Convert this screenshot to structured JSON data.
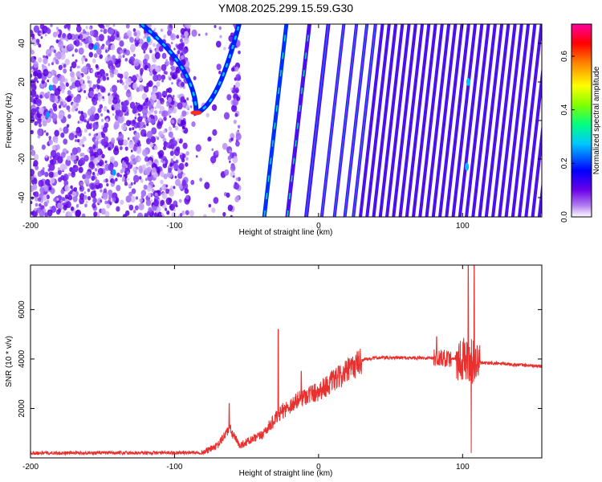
{
  "title": "YM08.2025.299.15.59.G30",
  "chart_data": [
    {
      "type": "heatmap",
      "xlabel": "Height of straight line (km)",
      "ylabel": "Frequency (Hz)",
      "xlim": [
        -200,
        155
      ],
      "ylim": [
        -50,
        50
      ],
      "x_ticks": [
        -200,
        -100,
        0,
        100
      ],
      "y_ticks": [
        -40,
        -20,
        0,
        20,
        40
      ],
      "colorbar": {
        "label": "Normalized spectral amplitude",
        "range": [
          0,
          0.72
        ],
        "ticks": [
          0,
          0.2,
          0.4,
          0.6
        ],
        "tick_labels": [
          "0.0",
          "0.2",
          "0.4",
          "0.6"
        ],
        "colors": [
          "#ffffff",
          "#8a2be2",
          "#0000ff",
          "#00ffff",
          "#00ff00",
          "#ffff00",
          "#ff0000",
          "#ff0090"
        ]
      },
      "features": {
        "noise_region_x": [
          -200,
          -85
        ],
        "arc_vertex": [
          -85,
          4
        ],
        "stripe_start_x": -30,
        "stripe_slope_hz_per_km": 6.5
      }
    },
    {
      "type": "line",
      "xlabel": "Height of straight line (km)",
      "ylabel": "SNR (10 * v/v)",
      "xlim": [
        -200,
        155
      ],
      "ylim": [
        0,
        7800
      ],
      "x_ticks": [
        -200,
        -100,
        0,
        100
      ],
      "y_ticks": [
        2000,
        4000,
        6000
      ],
      "color": "#e8302f",
      "series_trend": {
        "x": [
          -200,
          -120,
          -80,
          -70,
          -62,
          -55,
          -40,
          -25,
          -10,
          0,
          10,
          20,
          30,
          40,
          60,
          80,
          100,
          110,
          130,
          155
        ],
        "y": [
          200,
          200,
          220,
          500,
          1200,
          500,
          900,
          1900,
          2500,
          2700,
          3100,
          3500,
          3950,
          4050,
          4050,
          4050,
          4000,
          3850,
          3800,
          3700
        ]
      },
      "spikes": [
        {
          "x": -62,
          "y": 2200
        },
        {
          "x": -28,
          "y": 5200
        },
        {
          "x": -12,
          "y": 3500
        },
        {
          "x": 82,
          "y": 4900
        },
        {
          "x": 90,
          "y": 4300
        },
        {
          "x": 104,
          "y": 7800
        },
        {
          "x": 106,
          "y": 200
        },
        {
          "x": 108,
          "y": 7800
        }
      ]
    }
  ]
}
